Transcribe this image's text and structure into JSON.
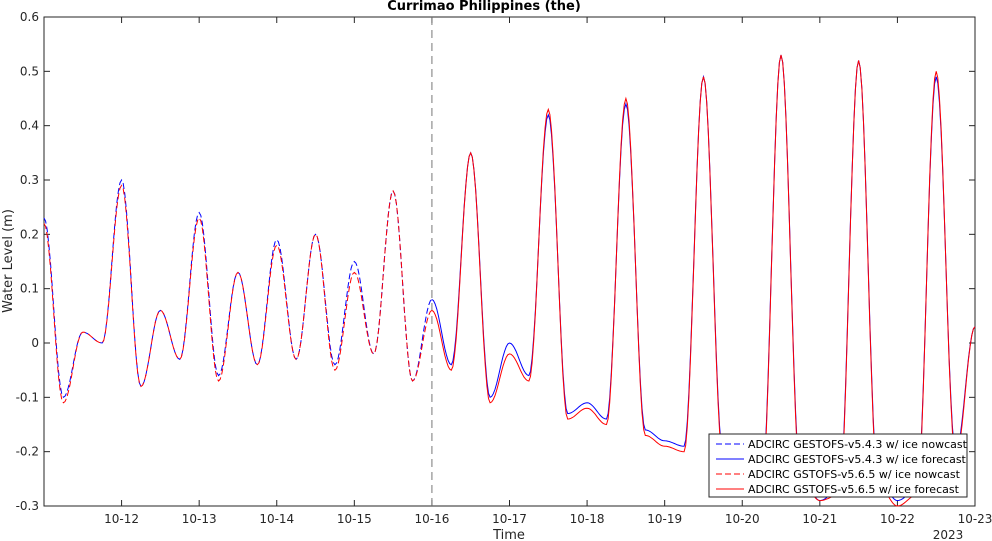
{
  "chart_data": {
    "type": "line",
    "title": "Currimao Philippines (the)",
    "xlabel": "Time",
    "ylabel": "Water Level (m)",
    "x_start": "2023-10-11 00:00",
    "x_end": "2023-10-23 00:00",
    "xlim": [
      "2023-10-11",
      "2023-10-23"
    ],
    "x_ticks": [
      "10-12",
      "10-13",
      "10-14",
      "10-15",
      "10-16",
      "10-17",
      "10-18",
      "10-19",
      "10-20",
      "10-21",
      "10-22",
      "10-23"
    ],
    "x_year_label": "2023",
    "ylim": [
      -0.3,
      0.6
    ],
    "y_ticks": [
      "-0.3",
      "-0.2",
      "-0.1",
      "0",
      "0.1",
      "0.2",
      "0.3",
      "0.4",
      "0.5",
      "0.6"
    ],
    "nowcast_end": "10-16",
    "grid": false,
    "legend_position": "bottom-right",
    "series": [
      {
        "name": "ADCIRC GESTOFS-v5.4.3 w/ ice nowcast",
        "color": "#0000ff",
        "style": "dashed",
        "x": [
          "10-11 00:00",
          "10-11 06:00",
          "10-11 12:00",
          "10-11 18:00",
          "10-12 00:00",
          "10-12 06:00",
          "10-12 12:00",
          "10-12 18:00",
          "10-13 00:00",
          "10-13 06:00",
          "10-13 12:00",
          "10-13 18:00",
          "10-14 00:00",
          "10-14 06:00",
          "10-14 12:00",
          "10-14 18:00",
          "10-15 00:00",
          "10-15 06:00",
          "10-15 12:00",
          "10-15 18:00",
          "10-16 00:00"
        ],
        "values": [
          0.23,
          -0.1,
          0.02,
          0.0,
          0.3,
          -0.08,
          0.06,
          -0.03,
          0.24,
          -0.06,
          0.13,
          -0.04,
          0.19,
          -0.03,
          0.2,
          -0.04,
          0.15,
          -0.02,
          0.28,
          -0.07,
          0.08
        ]
      },
      {
        "name": "ADCIRC GESTOFS-v5.4.3 w/ ice forecast",
        "color": "#0000ff",
        "style": "solid",
        "x": [
          "10-16 00:00",
          "10-16 06:00",
          "10-16 12:00",
          "10-16 18:00",
          "10-17 00:00",
          "10-17 06:00",
          "10-17 12:00",
          "10-17 18:00",
          "10-18 00:00",
          "10-18 06:00",
          "10-18 12:00",
          "10-18 18:00",
          "10-19 00:00",
          "10-19 06:00",
          "10-19 12:00",
          "10-19 18:00",
          "10-20 00:00",
          "10-20 06:00",
          "10-20 12:00",
          "10-20 18:00",
          "10-21 00:00",
          "10-21 06:00",
          "10-21 12:00",
          "10-21 18:00",
          "10-22 00:00",
          "10-22 06:00",
          "10-22 12:00",
          "10-22 18:00",
          "10-23 00:00"
        ],
        "values": [
          0.08,
          -0.04,
          0.35,
          -0.1,
          0.0,
          -0.06,
          0.42,
          -0.13,
          -0.11,
          -0.14,
          0.44,
          -0.16,
          -0.18,
          -0.19,
          0.49,
          -0.2,
          -0.22,
          -0.26,
          0.53,
          -0.24,
          -0.29,
          -0.27,
          0.52,
          -0.25,
          -0.29,
          -0.27,
          0.49,
          -0.2,
          0.03
        ]
      },
      {
        "name": "ADCIRC GSTOFS-v5.6.5 w/ ice nowcast",
        "color": "#ff0000",
        "style": "dashed",
        "x": [
          "10-11 00:00",
          "10-11 06:00",
          "10-11 12:00",
          "10-11 18:00",
          "10-12 00:00",
          "10-12 06:00",
          "10-12 12:00",
          "10-12 18:00",
          "10-13 00:00",
          "10-13 06:00",
          "10-13 12:00",
          "10-13 18:00",
          "10-14 00:00",
          "10-14 06:00",
          "10-14 12:00",
          "10-14 18:00",
          "10-15 00:00",
          "10-15 06:00",
          "10-15 12:00",
          "10-15 18:00",
          "10-16 00:00"
        ],
        "values": [
          0.22,
          -0.11,
          0.02,
          0.0,
          0.29,
          -0.08,
          0.06,
          -0.03,
          0.23,
          -0.07,
          0.13,
          -0.04,
          0.18,
          -0.03,
          0.2,
          -0.05,
          0.13,
          -0.02,
          0.28,
          -0.07,
          0.06
        ]
      },
      {
        "name": "ADCIRC GSTOFS-v5.6.5 w/ ice forecast",
        "color": "#ff0000",
        "style": "solid",
        "x": [
          "10-16 00:00",
          "10-16 06:00",
          "10-16 12:00",
          "10-16 18:00",
          "10-17 00:00",
          "10-17 06:00",
          "10-17 12:00",
          "10-17 18:00",
          "10-18 00:00",
          "10-18 06:00",
          "10-18 12:00",
          "10-18 18:00",
          "10-19 00:00",
          "10-19 06:00",
          "10-19 12:00",
          "10-19 18:00",
          "10-20 00:00",
          "10-20 06:00",
          "10-20 12:00",
          "10-20 18:00",
          "10-21 00:00",
          "10-21 06:00",
          "10-21 12:00",
          "10-21 18:00",
          "10-22 00:00",
          "10-22 06:00",
          "10-22 12:00",
          "10-22 18:00",
          "10-23 00:00"
        ],
        "values": [
          0.06,
          -0.05,
          0.35,
          -0.11,
          -0.02,
          -0.07,
          0.43,
          -0.14,
          -0.12,
          -0.15,
          0.45,
          -0.17,
          -0.19,
          -0.2,
          0.49,
          -0.21,
          -0.23,
          -0.27,
          0.53,
          -0.25,
          -0.29,
          -0.28,
          0.52,
          -0.26,
          -0.3,
          -0.28,
          0.5,
          -0.21,
          0.03
        ]
      }
    ]
  }
}
